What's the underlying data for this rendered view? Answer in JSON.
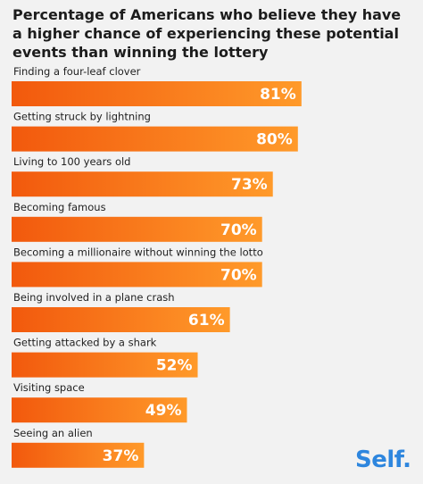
{
  "chart_data": {
    "type": "bar",
    "orientation": "horizontal",
    "title": "Percentage of Americans who believe they have a higher chance of experiencing these potential events than winning the lottery",
    "categories": [
      "Finding a four-leaf clover",
      "Getting struck by lightning",
      "Living to 100 years old",
      "Becoming famous",
      "Becoming a millionaire without winning the lotto",
      "Being involved in a plane crash",
      "Getting attacked by a shark",
      "Visiting space",
      "Seeing an alien"
    ],
    "values": [
      81,
      80,
      73,
      70,
      70,
      61,
      52,
      49,
      37
    ],
    "value_labels": [
      "81%",
      "80%",
      "73%",
      "70%",
      "70%",
      "61%",
      "52%",
      "49%",
      "37%"
    ],
    "xlim": [
      0,
      100
    ],
    "grid": false,
    "legend": "none",
    "colors": {
      "bar_start": "#f2590d",
      "bar_end": "#ff9a2a",
      "background": "#f2f2f2"
    }
  },
  "logo": {
    "text": "Self."
  }
}
